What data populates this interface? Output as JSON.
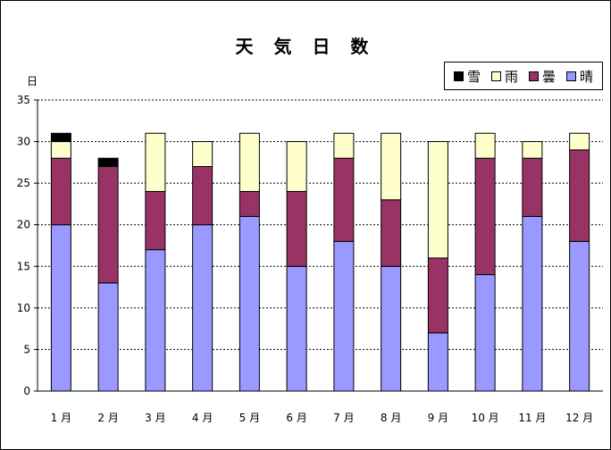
{
  "chart_data": {
    "type": "bar",
    "stacked": true,
    "title": "天 気 日 数",
    "ylabel": "日",
    "xlabel": "",
    "ylim": [
      0,
      35
    ],
    "yticks": [
      0,
      5,
      10,
      15,
      20,
      25,
      30,
      35
    ],
    "grid": "horizontal-dashed",
    "legend_position": "top-right",
    "categories": [
      "1 月",
      "2 月",
      "3 月",
      "4 月",
      "5 月",
      "6 月",
      "7 月",
      "8 月",
      "9 月",
      "10 月",
      "11 月",
      "12 月"
    ],
    "series": [
      {
        "name": "晴",
        "color": "#9999ff",
        "values": [
          20,
          13,
          17,
          20,
          21,
          15,
          18,
          15,
          7,
          14,
          21,
          18
        ]
      },
      {
        "name": "曇",
        "color": "#993366",
        "values": [
          8,
          14,
          7,
          7,
          3,
          9,
          10,
          8,
          9,
          14,
          7,
          11
        ]
      },
      {
        "name": "雨",
        "color": "#ffffcc",
        "values": [
          2,
          0,
          7,
          3,
          7,
          6,
          3,
          8,
          14,
          3,
          2,
          2
        ]
      },
      {
        "name": "雪",
        "color": "#000000",
        "values": [
          1,
          1,
          0,
          0,
          0,
          0,
          0,
          0,
          0,
          0,
          0,
          0
        ]
      }
    ],
    "legend_order": [
      "雪",
      "雨",
      "曇",
      "晴"
    ]
  }
}
